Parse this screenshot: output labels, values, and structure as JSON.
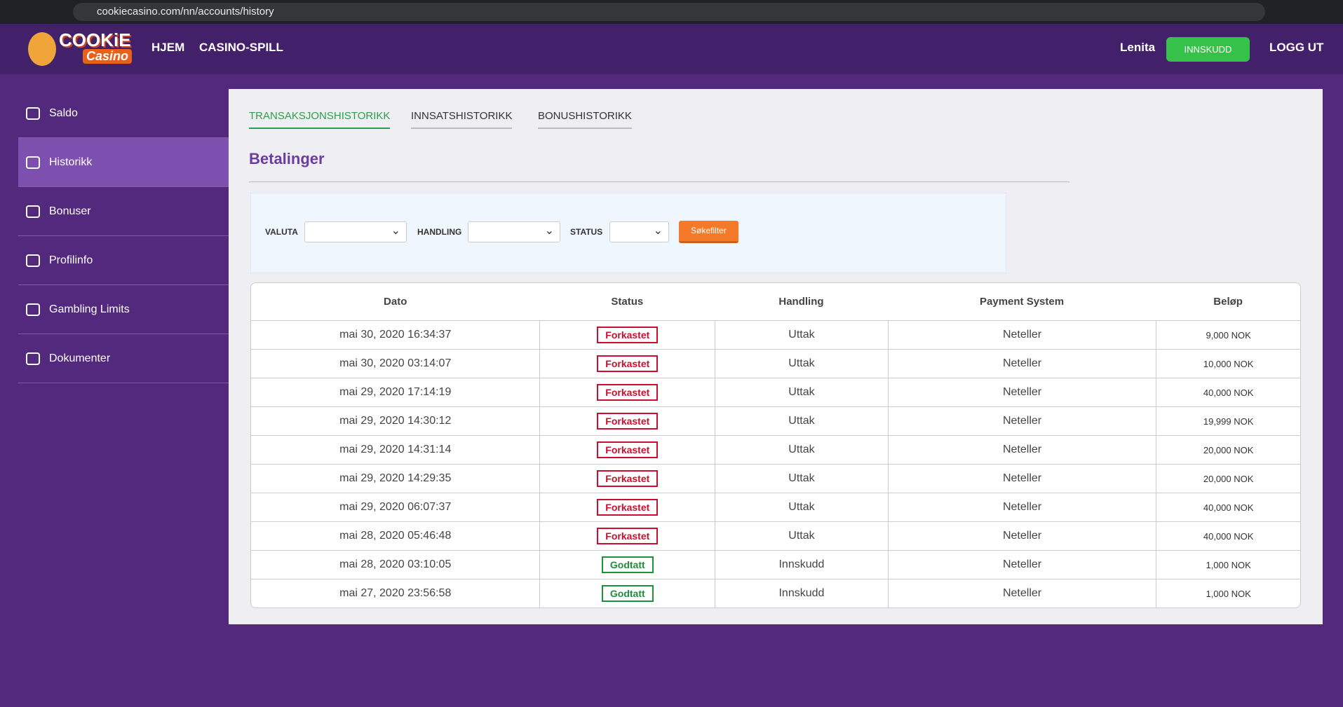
{
  "browser": {
    "url": "cookiecasino.com/nn/accounts/history"
  },
  "header": {
    "logo": {
      "line1": "COOKiE",
      "line2": "Casino"
    },
    "nav": [
      "HJEM",
      "CASINO-SPILL"
    ],
    "user": "Lenita",
    "deposit_button": "INNSKUDD",
    "logout": "LOGG UT"
  },
  "sidebar": {
    "items": [
      "Saldo",
      "Historikk",
      "Bonuser",
      "Profilinfo",
      "Gambling Limits",
      "Dokumenter"
    ]
  },
  "tabs": [
    "TRANSAKSJONSHISTORIKK",
    "INNSATSHISTORIKK",
    "BONUSHISTORIKK"
  ],
  "heading": "Betalinger",
  "filters": {
    "labels": [
      "VALUTA",
      "HANDLING",
      "STATUS"
    ],
    "button": "Søkefilter"
  },
  "table": {
    "columns": [
      "Dato",
      "Status",
      "Handling",
      "Payment System",
      "Beløp"
    ],
    "rows": [
      {
        "date": "mai 30, 2020 16:34:37",
        "status": "Forkastet",
        "status_color": "#c8102e",
        "action": "Uttak",
        "system": "Neteller",
        "amount": "9,000 NOK"
      },
      {
        "date": "mai 30, 2020 03:14:07",
        "status": "Forkastet",
        "status_color": "#c8102e",
        "action": "Uttak",
        "system": "Neteller",
        "amount": "10,000 NOK"
      },
      {
        "date": "mai 29, 2020 17:14:19",
        "status": "Forkastet",
        "status_color": "#c8102e",
        "action": "Uttak",
        "system": "Neteller",
        "amount": "40,000 NOK"
      },
      {
        "date": "mai 29, 2020 14:30:12",
        "status": "Forkastet",
        "status_color": "#c8102e",
        "action": "Uttak",
        "system": "Neteller",
        "amount": "19,999 NOK"
      },
      {
        "date": "mai 29, 2020 14:31:14",
        "status": "Forkastet",
        "status_color": "#c8102e",
        "action": "Uttak",
        "system": "Neteller",
        "amount": "20,000 NOK"
      },
      {
        "date": "mai 29, 2020 14:29:35",
        "status": "Forkastet",
        "status_color": "#c8102e",
        "action": "Uttak",
        "system": "Neteller",
        "amount": "20,000 NOK"
      },
      {
        "date": "mai 29, 2020 06:07:37",
        "status": "Forkastet",
        "status_color": "#c8102e",
        "action": "Uttak",
        "system": "Neteller",
        "amount": "40,000 NOK"
      },
      {
        "date": "mai 28, 2020 05:46:48",
        "status": "Forkastet",
        "status_color": "#c8102e",
        "action": "Uttak",
        "system": "Neteller",
        "amount": "40,000 NOK"
      },
      {
        "date": "mai 28, 2020 03:10:05",
        "status": "Godtatt",
        "status_color": "#1e8f3a",
        "action": "Innskudd",
        "system": "Neteller",
        "amount": "1,000 NOK"
      },
      {
        "date": "mai 27, 2020 23:56:58",
        "status": "Godtatt",
        "status_color": "#1e8f3a",
        "action": "Innskudd",
        "system": "Neteller",
        "amount": "1,000 NOK"
      }
    ]
  }
}
